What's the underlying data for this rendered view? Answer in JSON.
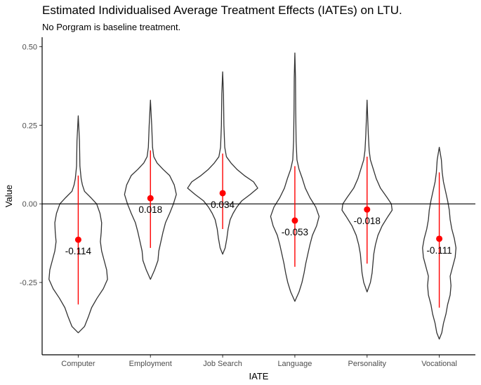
{
  "chart_data": {
    "type": "violin",
    "title": "Estimated Individualised Average Treatment Effects (IATEs) on LTU.",
    "subtitle": "No Porgram is baseline treatment.",
    "xlabel": "IATE",
    "ylabel": "Value",
    "ylim": [
      -0.48,
      0.53
    ],
    "yticks": [
      0.5,
      0.25,
      0.0,
      -0.25
    ],
    "ytick_labels": [
      "0.50",
      "0.25",
      "0.00",
      "-0.25"
    ],
    "reference_line_y": 0,
    "grid": false,
    "legend": "none",
    "colors": {
      "violin": "#333333",
      "point": "#ff0000",
      "interval": "#ff0000",
      "reference_line": "#000000"
    },
    "categories": [
      "Computer",
      "Employment",
      "Job Search",
      "Language",
      "Personality",
      "Vocational"
    ],
    "groups": [
      {
        "name": "Computer",
        "mean": -0.114,
        "label": "-0.114",
        "min": -0.41,
        "max": 0.28,
        "interval": [
          -0.32,
          0.09
        ],
        "profile": [
          [
            -0.41,
            0.0
          ],
          [
            -0.39,
            0.015
          ],
          [
            -0.36,
            0.024
          ],
          [
            -0.33,
            0.032
          ],
          [
            -0.3,
            0.045
          ],
          [
            -0.27,
            0.06
          ],
          [
            -0.24,
            0.07
          ],
          [
            -0.21,
            0.068
          ],
          [
            -0.18,
            0.062
          ],
          [
            -0.15,
            0.056
          ],
          [
            -0.12,
            0.053
          ],
          [
            -0.09,
            0.055
          ],
          [
            -0.06,
            0.056
          ],
          [
            -0.03,
            0.052
          ],
          [
            0.0,
            0.044
          ],
          [
            0.02,
            0.03
          ],
          [
            0.04,
            0.015
          ],
          [
            0.06,
            0.01
          ],
          [
            0.08,
            0.007
          ],
          [
            0.12,
            0.004
          ],
          [
            0.2,
            0.003
          ],
          [
            0.28,
            0.0
          ]
        ]
      },
      {
        "name": "Employment",
        "mean": 0.018,
        "label": "0.018",
        "min": -0.24,
        "max": 0.33,
        "interval": [
          -0.14,
          0.17
        ],
        "profile": [
          [
            -0.24,
            0.0
          ],
          [
            -0.21,
            0.01
          ],
          [
            -0.18,
            0.018
          ],
          [
            -0.15,
            0.02
          ],
          [
            -0.12,
            0.025
          ],
          [
            -0.09,
            0.03
          ],
          [
            -0.06,
            0.036
          ],
          [
            -0.03,
            0.046
          ],
          [
            0.0,
            0.055
          ],
          [
            0.03,
            0.062
          ],
          [
            0.06,
            0.057
          ],
          [
            0.09,
            0.046
          ],
          [
            0.11,
            0.03
          ],
          [
            0.13,
            0.016
          ],
          [
            0.15,
            0.008
          ],
          [
            0.18,
            0.005
          ],
          [
            0.25,
            0.003
          ],
          [
            0.33,
            0.0
          ]
        ]
      },
      {
        "name": "Job Search",
        "mean": 0.034,
        "label": "0.034",
        "min": -0.16,
        "max": 0.42,
        "interval": [
          -0.08,
          0.16
        ],
        "profile": [
          [
            -0.16,
            0.0
          ],
          [
            -0.14,
            0.006
          ],
          [
            -0.11,
            0.01
          ],
          [
            -0.08,
            0.013
          ],
          [
            -0.05,
            0.018
          ],
          [
            -0.03,
            0.025
          ],
          [
            -0.01,
            0.034
          ],
          [
            0.01,
            0.046
          ],
          [
            0.03,
            0.066
          ],
          [
            0.05,
            0.084
          ],
          [
            0.07,
            0.074
          ],
          [
            0.09,
            0.052
          ],
          [
            0.11,
            0.034
          ],
          [
            0.13,
            0.02
          ],
          [
            0.15,
            0.009
          ],
          [
            0.18,
            0.005
          ],
          [
            0.25,
            0.003
          ],
          [
            0.35,
            0.002
          ],
          [
            0.42,
            0.0
          ]
        ]
      },
      {
        "name": "Language",
        "mean": -0.053,
        "label": "-0.053",
        "min": -0.31,
        "max": 0.48,
        "interval": [
          -0.2,
          0.12
        ],
        "profile": [
          [
            -0.31,
            0.0
          ],
          [
            -0.28,
            0.01
          ],
          [
            -0.25,
            0.017
          ],
          [
            -0.22,
            0.022
          ],
          [
            -0.19,
            0.026
          ],
          [
            -0.16,
            0.031
          ],
          [
            -0.13,
            0.036
          ],
          [
            -0.1,
            0.042
          ],
          [
            -0.07,
            0.052
          ],
          [
            -0.04,
            0.058
          ],
          [
            -0.01,
            0.05
          ],
          [
            0.02,
            0.036
          ],
          [
            0.05,
            0.025
          ],
          [
            0.08,
            0.018
          ],
          [
            0.11,
            0.01
          ],
          [
            0.14,
            0.005
          ],
          [
            0.2,
            0.003
          ],
          [
            0.3,
            0.002
          ],
          [
            0.4,
            0.0015
          ],
          [
            0.48,
            0.0
          ]
        ]
      },
      {
        "name": "Personality",
        "mean": -0.018,
        "label": "-0.018",
        "min": -0.28,
        "max": 0.33,
        "interval": [
          -0.19,
          0.15
        ],
        "profile": [
          [
            -0.28,
            0.0
          ],
          [
            -0.25,
            0.008
          ],
          [
            -0.22,
            0.012
          ],
          [
            -0.19,
            0.014
          ],
          [
            -0.16,
            0.016
          ],
          [
            -0.13,
            0.02
          ],
          [
            -0.1,
            0.026
          ],
          [
            -0.07,
            0.036
          ],
          [
            -0.04,
            0.05
          ],
          [
            -0.02,
            0.06
          ],
          [
            0.0,
            0.058
          ],
          [
            0.02,
            0.048
          ],
          [
            0.05,
            0.032
          ],
          [
            0.08,
            0.022
          ],
          [
            0.11,
            0.015
          ],
          [
            0.14,
            0.008
          ],
          [
            0.17,
            0.005
          ],
          [
            0.22,
            0.003
          ],
          [
            0.33,
            0.0
          ]
        ]
      },
      {
        "name": "Vocational",
        "mean": -0.111,
        "label": "-0.111",
        "min": -0.43,
        "max": 0.18,
        "interval": [
          -0.33,
          0.1
        ],
        "profile": [
          [
            -0.43,
            0.0
          ],
          [
            -0.41,
            0.006
          ],
          [
            -0.38,
            0.01
          ],
          [
            -0.35,
            0.016
          ],
          [
            -0.32,
            0.02
          ],
          [
            -0.29,
            0.026
          ],
          [
            -0.26,
            0.028
          ],
          [
            -0.23,
            0.026
          ],
          [
            -0.2,
            0.032
          ],
          [
            -0.17,
            0.038
          ],
          [
            -0.14,
            0.04
          ],
          [
            -0.11,
            0.036
          ],
          [
            -0.08,
            0.03
          ],
          [
            -0.05,
            0.026
          ],
          [
            -0.02,
            0.024
          ],
          [
            0.01,
            0.02
          ],
          [
            0.04,
            0.015
          ],
          [
            0.07,
            0.01
          ],
          [
            0.1,
            0.007
          ],
          [
            0.14,
            0.005
          ],
          [
            0.18,
            0.0
          ]
        ]
      }
    ]
  }
}
